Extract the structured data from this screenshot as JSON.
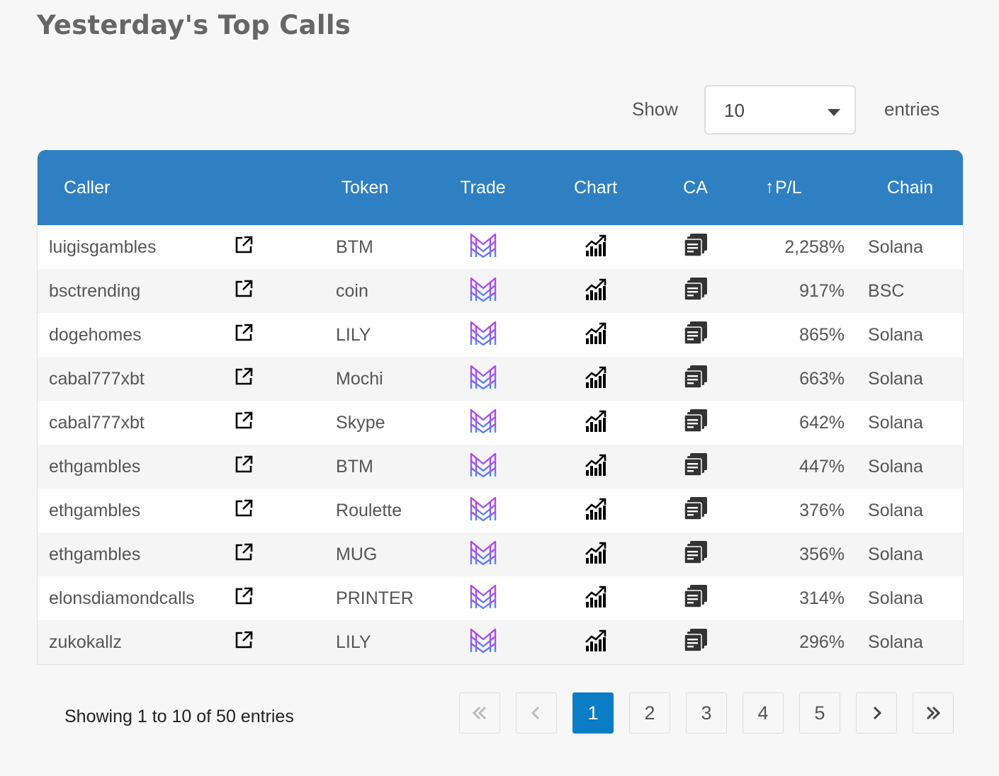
{
  "page": {
    "title": "Yesterday's Top Calls"
  },
  "length_control": {
    "show_label": "Show",
    "selected": "10",
    "entries_label": "entries"
  },
  "table": {
    "columns": {
      "caller": "Caller",
      "token": "Token",
      "trade": "Trade",
      "chart": "Chart",
      "ca": "CA",
      "pl": "P/L",
      "chain": "Chain"
    },
    "sort_icon": "arrow-up",
    "rows": [
      {
        "caller": "luigisgambles",
        "token": "BTM",
        "pl": "2,258%",
        "chain": "Solana"
      },
      {
        "caller": "bsctrending",
        "token": "coin",
        "pl": "917%",
        "chain": "BSC"
      },
      {
        "caller": "dogehomes",
        "token": "LILY",
        "pl": "865%",
        "chain": "Solana"
      },
      {
        "caller": "cabal777xbt",
        "token": "Mochi",
        "pl": "663%",
        "chain": "Solana"
      },
      {
        "caller": "cabal777xbt",
        "token": "Skype",
        "pl": "642%",
        "chain": "Solana"
      },
      {
        "caller": "ethgambles",
        "token": "BTM",
        "pl": "447%",
        "chain": "Solana"
      },
      {
        "caller": "ethgambles",
        "token": "Roulette",
        "pl": "376%",
        "chain": "Solana"
      },
      {
        "caller": "ethgambles",
        "token": "MUG",
        "pl": "356%",
        "chain": "Solana"
      },
      {
        "caller": "elonsdiamondcalls",
        "token": "PRINTER",
        "pl": "314%",
        "chain": "Solana"
      },
      {
        "caller": "zukokallz",
        "token": "LILY",
        "pl": "296%",
        "chain": "Solana"
      }
    ],
    "row_icons": {
      "link": "external-link-icon",
      "trade": "trade-logo-icon",
      "chart": "chart-icon",
      "ca": "copy-icon"
    }
  },
  "footer": {
    "info": "Showing 1 to 10 of 50 entries",
    "pages": [
      "1",
      "2",
      "3",
      "4",
      "5"
    ],
    "current_page": "1",
    "nav_icons": {
      "first": "double-chevron-left-icon",
      "prev": "chevron-left-icon",
      "next": "chevron-right-icon",
      "last": "double-chevron-right-icon"
    }
  },
  "colors": {
    "header_bg": "#2e80c3",
    "active_page": "#0b7dc4",
    "trade_logo_top": "#c13cf0",
    "trade_logo_bottom": "#4a8cf7"
  }
}
